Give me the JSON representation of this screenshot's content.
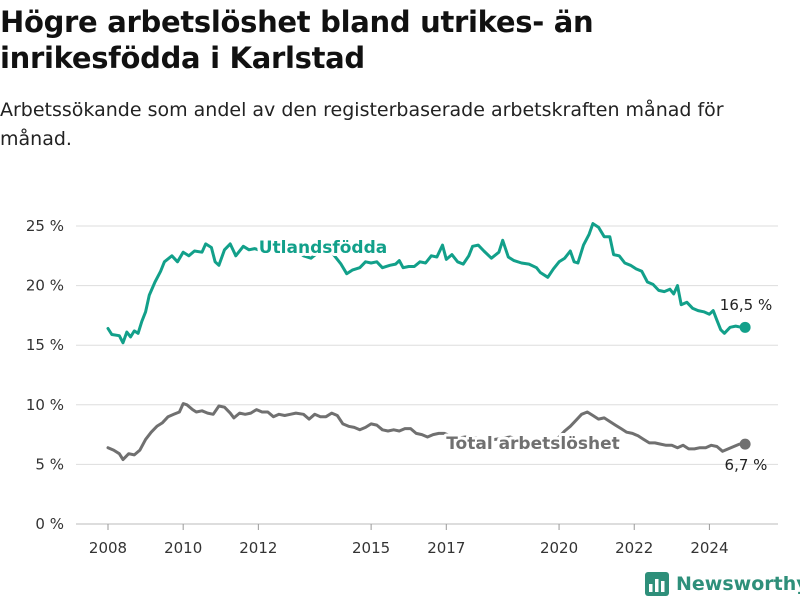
{
  "title": "Högre arbetslöshet bland utrikes- än inrikesfödda i Karlstad",
  "subtitle": "Arbetssökande som andel av den registerbaserade arbetskraften månad för månad.",
  "brand": "Newsworthy",
  "colors": {
    "utlandsfodda": "#12a08a",
    "total": "#707070",
    "grid": "#dddddd",
    "brand": "#2e8f7a"
  },
  "chart_data": {
    "type": "line",
    "title": "Högre arbetslöshet bland utrikes- än inrikesfödda i Karlstad",
    "xlabel": "",
    "ylabel": "",
    "xlim": [
      2007.6,
      2025.6
    ],
    "ylim": [
      0,
      25
    ],
    "x_ticks": [
      2008,
      2010,
      2012,
      2015,
      2017,
      2020,
      2022,
      2024
    ],
    "y_ticks": [
      {
        "value": 0,
        "label": "0 %"
      },
      {
        "value": 5,
        "label": "5 %"
      },
      {
        "value": 10,
        "label": "10 %"
      },
      {
        "value": 15,
        "label": "15 %"
      },
      {
        "value": 20,
        "label": "20 %"
      },
      {
        "value": 25,
        "label": "25 %"
      }
    ],
    "grid": true,
    "series": [
      {
        "name": "Utlandsfödda",
        "color": "#12a08a",
        "end_label": "16,5 %",
        "points": [
          [
            2008.0,
            16.4
          ],
          [
            2008.1,
            15.9
          ],
          [
            2008.3,
            15.8
          ],
          [
            2008.4,
            15.2
          ],
          [
            2008.5,
            16.1
          ],
          [
            2008.6,
            15.7
          ],
          [
            2008.7,
            16.2
          ],
          [
            2008.8,
            16.0
          ],
          [
            2008.9,
            17.0
          ],
          [
            2009.0,
            17.8
          ],
          [
            2009.1,
            19.2
          ],
          [
            2009.25,
            20.3
          ],
          [
            2009.4,
            21.2
          ],
          [
            2009.5,
            22.0
          ],
          [
            2009.7,
            22.5
          ],
          [
            2009.85,
            22.0
          ],
          [
            2010.0,
            22.8
          ],
          [
            2010.15,
            22.5
          ],
          [
            2010.3,
            22.9
          ],
          [
            2010.5,
            22.8
          ],
          [
            2010.6,
            23.5
          ],
          [
            2010.75,
            23.2
          ],
          [
            2010.85,
            22.0
          ],
          [
            2010.95,
            21.7
          ],
          [
            2011.1,
            23.0
          ],
          [
            2011.25,
            23.5
          ],
          [
            2011.4,
            22.5
          ],
          [
            2011.6,
            23.3
          ],
          [
            2011.75,
            23.0
          ],
          [
            2011.9,
            23.1
          ],
          [
            2012.0,
            23.0
          ],
          [
            2012.2,
            23.3
          ],
          [
            2012.4,
            23.0
          ],
          [
            2012.6,
            23.2
          ],
          [
            2012.8,
            22.8
          ],
          [
            2013.0,
            23.0
          ],
          [
            2013.2,
            22.5
          ],
          [
            2013.4,
            22.3
          ],
          [
            2013.6,
            22.8
          ],
          [
            2013.8,
            23.3
          ],
          [
            2014.0,
            22.6
          ],
          [
            2014.2,
            21.8
          ],
          [
            2014.35,
            21.0
          ],
          [
            2014.5,
            21.3
          ],
          [
            2014.7,
            21.5
          ],
          [
            2014.85,
            22.0
          ],
          [
            2015.0,
            21.9
          ],
          [
            2015.15,
            22.0
          ],
          [
            2015.3,
            21.5
          ],
          [
            2015.5,
            21.7
          ],
          [
            2015.65,
            21.8
          ],
          [
            2015.75,
            22.1
          ],
          [
            2015.85,
            21.5
          ],
          [
            2016.0,
            21.6
          ],
          [
            2016.15,
            21.6
          ],
          [
            2016.3,
            22.0
          ],
          [
            2016.45,
            21.9
          ],
          [
            2016.6,
            22.5
          ],
          [
            2016.75,
            22.4
          ],
          [
            2016.9,
            23.4
          ],
          [
            2017.0,
            22.2
          ],
          [
            2017.15,
            22.6
          ],
          [
            2017.3,
            22.0
          ],
          [
            2017.45,
            21.8
          ],
          [
            2017.6,
            22.5
          ],
          [
            2017.7,
            23.3
          ],
          [
            2017.85,
            23.4
          ],
          [
            2018.0,
            22.9
          ],
          [
            2018.2,
            22.3
          ],
          [
            2018.4,
            22.8
          ],
          [
            2018.5,
            23.8
          ],
          [
            2018.65,
            22.4
          ],
          [
            2018.8,
            22.1
          ],
          [
            2019.0,
            21.9
          ],
          [
            2019.2,
            21.8
          ],
          [
            2019.4,
            21.5
          ],
          [
            2019.5,
            21.1
          ],
          [
            2019.7,
            20.7
          ],
          [
            2019.85,
            21.4
          ],
          [
            2020.0,
            22.0
          ],
          [
            2020.15,
            22.3
          ],
          [
            2020.3,
            22.9
          ],
          [
            2020.4,
            22.0
          ],
          [
            2020.5,
            21.9
          ],
          [
            2020.65,
            23.4
          ],
          [
            2020.8,
            24.3
          ],
          [
            2020.9,
            25.2
          ],
          [
            2021.05,
            24.9
          ],
          [
            2021.2,
            24.1
          ],
          [
            2021.35,
            24.1
          ],
          [
            2021.45,
            22.6
          ],
          [
            2021.6,
            22.5
          ],
          [
            2021.75,
            21.9
          ],
          [
            2021.9,
            21.7
          ],
          [
            2022.05,
            21.4
          ],
          [
            2022.2,
            21.2
          ],
          [
            2022.35,
            20.3
          ],
          [
            2022.5,
            20.1
          ],
          [
            2022.65,
            19.6
          ],
          [
            2022.8,
            19.5
          ],
          [
            2022.95,
            19.7
          ],
          [
            2023.05,
            19.3
          ],
          [
            2023.15,
            20.0
          ],
          [
            2023.25,
            18.4
          ],
          [
            2023.4,
            18.6
          ],
          [
            2023.55,
            18.1
          ],
          [
            2023.7,
            17.9
          ],
          [
            2023.85,
            17.8
          ],
          [
            2024.0,
            17.6
          ],
          [
            2024.1,
            17.9
          ],
          [
            2024.2,
            17.1
          ],
          [
            2024.3,
            16.3
          ],
          [
            2024.4,
            16.0
          ],
          [
            2024.55,
            16.5
          ],
          [
            2024.7,
            16.6
          ],
          [
            2024.85,
            16.5
          ],
          [
            2024.95,
            16.5
          ]
        ]
      },
      {
        "name": "Total arbetslöshet",
        "color": "#707070",
        "end_label": "6,7 %",
        "points": [
          [
            2008.0,
            6.4
          ],
          [
            2008.15,
            6.2
          ],
          [
            2008.3,
            5.9
          ],
          [
            2008.4,
            5.4
          ],
          [
            2008.55,
            5.9
          ],
          [
            2008.7,
            5.8
          ],
          [
            2008.85,
            6.2
          ],
          [
            2009.0,
            7.1
          ],
          [
            2009.15,
            7.7
          ],
          [
            2009.3,
            8.2
          ],
          [
            2009.45,
            8.5
          ],
          [
            2009.6,
            9.0
          ],
          [
            2009.75,
            9.2
          ],
          [
            2009.9,
            9.4
          ],
          [
            2010.0,
            10.1
          ],
          [
            2010.1,
            10.0
          ],
          [
            2010.25,
            9.6
          ],
          [
            2010.35,
            9.4
          ],
          [
            2010.5,
            9.5
          ],
          [
            2010.65,
            9.3
          ],
          [
            2010.8,
            9.2
          ],
          [
            2010.95,
            9.9
          ],
          [
            2011.1,
            9.8
          ],
          [
            2011.25,
            9.3
          ],
          [
            2011.35,
            8.9
          ],
          [
            2011.5,
            9.3
          ],
          [
            2011.65,
            9.2
          ],
          [
            2011.8,
            9.3
          ],
          [
            2011.95,
            9.6
          ],
          [
            2012.1,
            9.4
          ],
          [
            2012.25,
            9.4
          ],
          [
            2012.4,
            9.0
          ],
          [
            2012.55,
            9.2
          ],
          [
            2012.7,
            9.1
          ],
          [
            2012.85,
            9.2
          ],
          [
            2013.0,
            9.3
          ],
          [
            2013.2,
            9.2
          ],
          [
            2013.35,
            8.8
          ],
          [
            2013.5,
            9.2
          ],
          [
            2013.65,
            9.0
          ],
          [
            2013.8,
            9.0
          ],
          [
            2013.95,
            9.3
          ],
          [
            2014.1,
            9.1
          ],
          [
            2014.25,
            8.4
          ],
          [
            2014.4,
            8.2
          ],
          [
            2014.55,
            8.1
          ],
          [
            2014.7,
            7.9
          ],
          [
            2014.85,
            8.1
          ],
          [
            2015.0,
            8.4
          ],
          [
            2015.15,
            8.3
          ],
          [
            2015.3,
            7.9
          ],
          [
            2015.45,
            7.8
          ],
          [
            2015.6,
            7.9
          ],
          [
            2015.75,
            7.8
          ],
          [
            2015.9,
            8.0
          ],
          [
            2016.05,
            8.0
          ],
          [
            2016.2,
            7.6
          ],
          [
            2016.35,
            7.5
          ],
          [
            2016.5,
            7.3
          ],
          [
            2016.65,
            7.5
          ],
          [
            2016.8,
            7.6
          ],
          [
            2016.95,
            7.6
          ],
          [
            2017.1,
            7.4
          ],
          [
            2017.3,
            7.2
          ],
          [
            2017.5,
            7.3
          ],
          [
            2017.7,
            7.3
          ],
          [
            2017.9,
            7.1
          ],
          [
            2018.1,
            7.0
          ],
          [
            2018.3,
            7.1
          ],
          [
            2018.5,
            7.2
          ],
          [
            2018.7,
            7.3
          ],
          [
            2018.9,
            7.1
          ],
          [
            2019.1,
            7.0
          ],
          [
            2019.3,
            7.0
          ],
          [
            2019.5,
            7.0
          ],
          [
            2019.7,
            7.2
          ],
          [
            2019.85,
            7.0
          ],
          [
            2020.0,
            7.3
          ],
          [
            2020.15,
            7.8
          ],
          [
            2020.3,
            8.2
          ],
          [
            2020.45,
            8.7
          ],
          [
            2020.6,
            9.2
          ],
          [
            2020.75,
            9.4
          ],
          [
            2020.9,
            9.1
          ],
          [
            2021.05,
            8.8
          ],
          [
            2021.2,
            8.9
          ],
          [
            2021.35,
            8.6
          ],
          [
            2021.5,
            8.3
          ],
          [
            2021.65,
            8.0
          ],
          [
            2021.8,
            7.7
          ],
          [
            2021.95,
            7.6
          ],
          [
            2022.1,
            7.4
          ],
          [
            2022.25,
            7.1
          ],
          [
            2022.4,
            6.8
          ],
          [
            2022.55,
            6.8
          ],
          [
            2022.7,
            6.7
          ],
          [
            2022.85,
            6.6
          ],
          [
            2023.0,
            6.6
          ],
          [
            2023.15,
            6.4
          ],
          [
            2023.3,
            6.6
          ],
          [
            2023.45,
            6.3
          ],
          [
            2023.6,
            6.3
          ],
          [
            2023.75,
            6.4
          ],
          [
            2023.9,
            6.4
          ],
          [
            2024.05,
            6.6
          ],
          [
            2024.2,
            6.5
          ],
          [
            2024.35,
            6.1
          ],
          [
            2024.5,
            6.3
          ],
          [
            2024.65,
            6.5
          ],
          [
            2024.8,
            6.7
          ],
          [
            2024.95,
            6.7
          ]
        ]
      }
    ]
  }
}
